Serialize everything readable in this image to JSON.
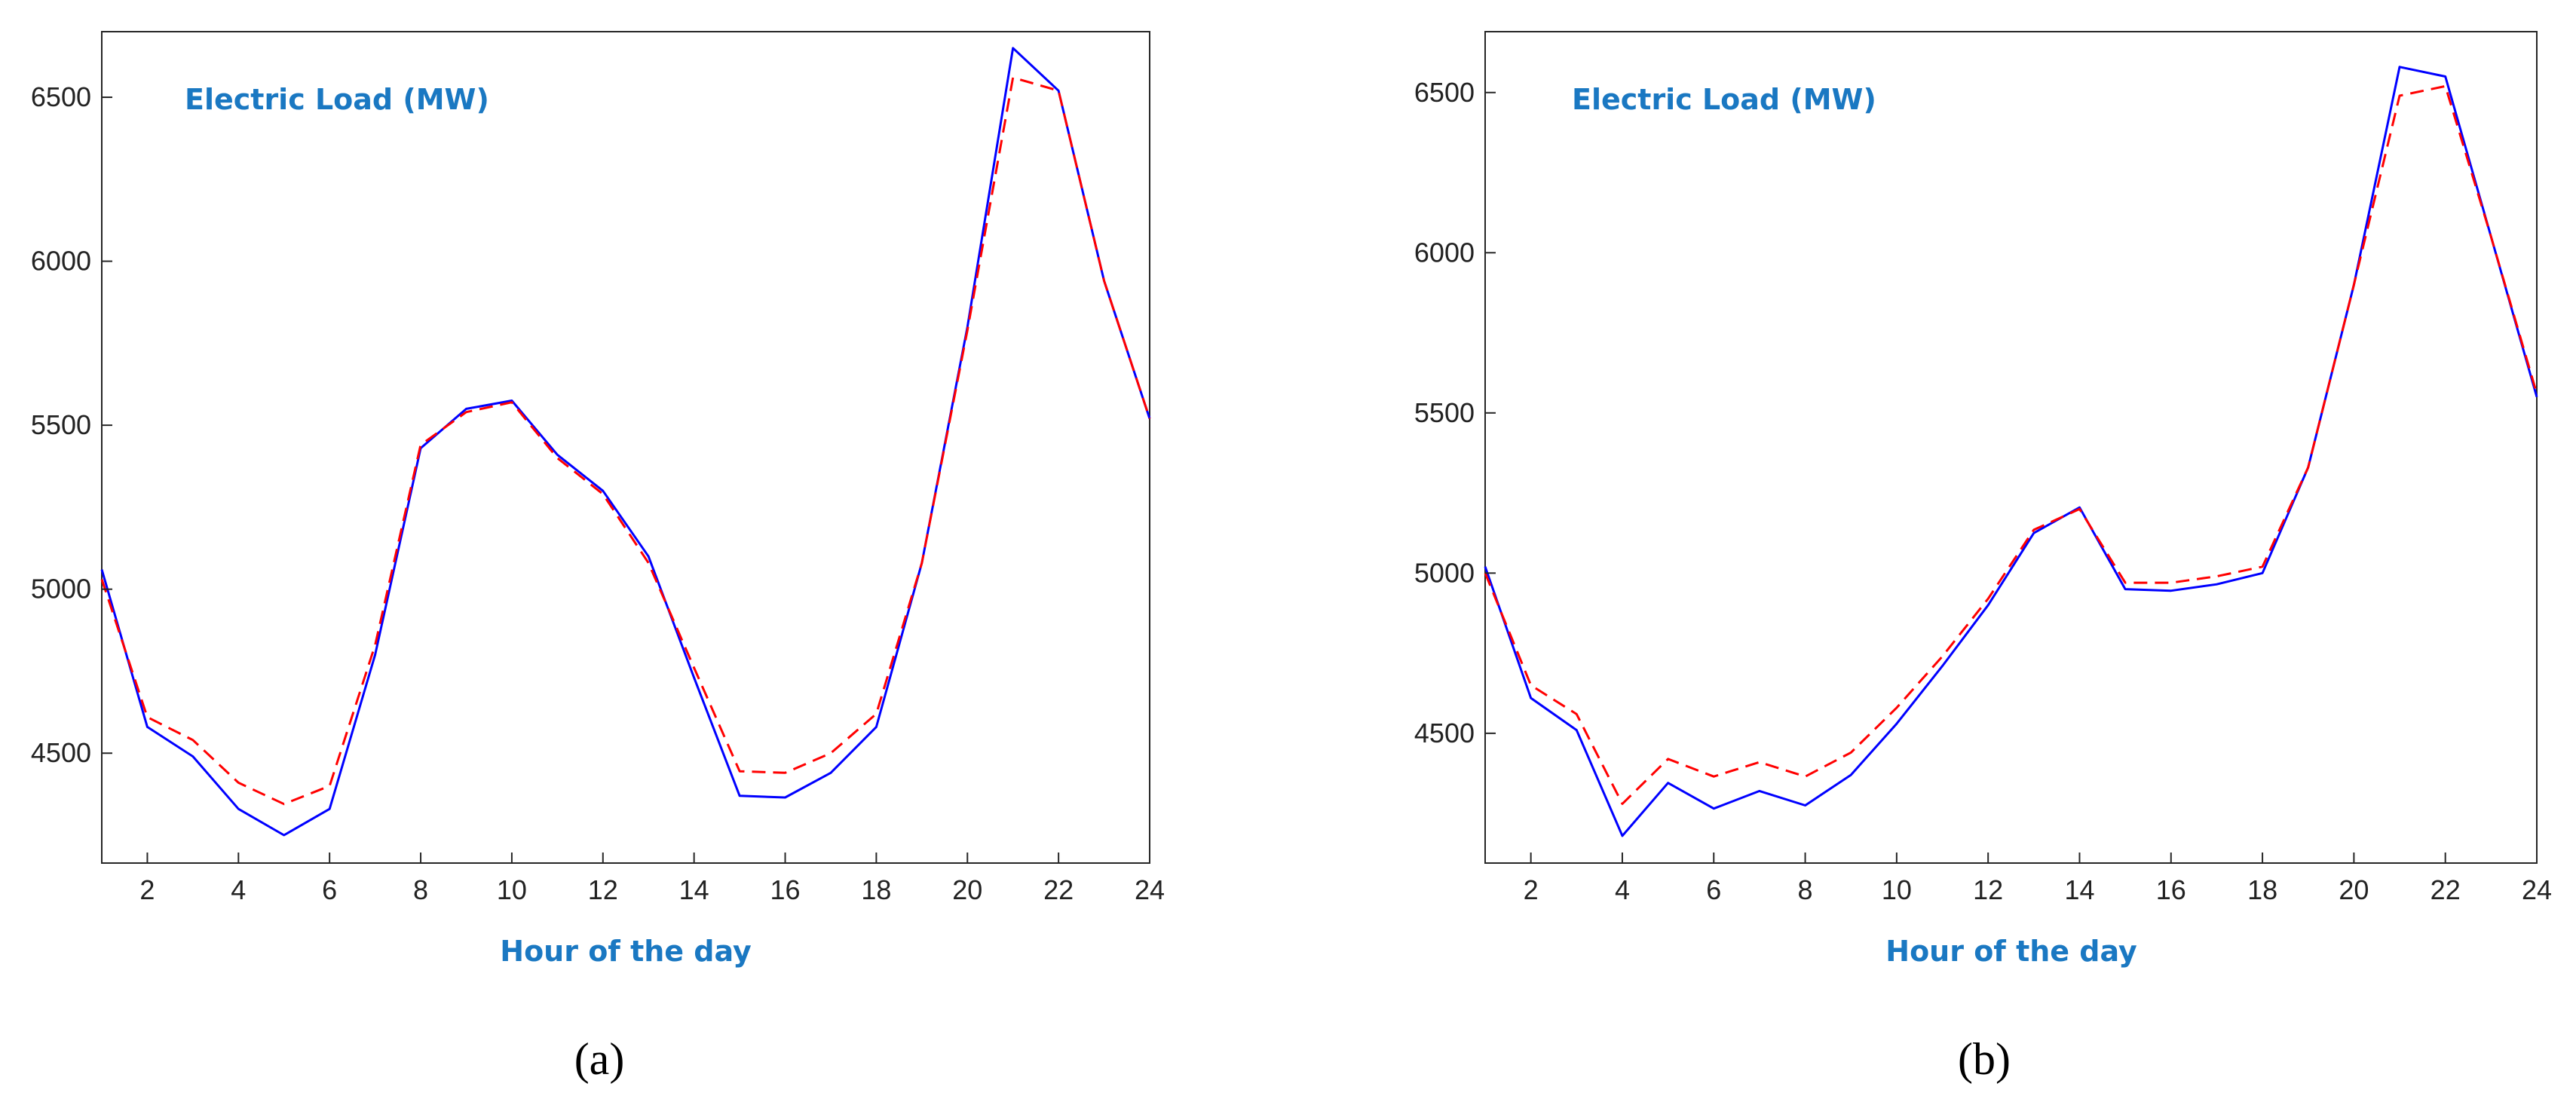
{
  "colors": {
    "actual": "#0000ff",
    "forecast": "#ff0000",
    "label_text": "#1a78c2",
    "axis": "#262626"
  },
  "chart_data": [
    {
      "type": "line",
      "title": "Electric Load (MW)",
      "xlabel": "Hour of the day",
      "ylabel": "",
      "caption": "(a)",
      "xlim": [
        1,
        24
      ],
      "ylim": [
        4165,
        6700
      ],
      "xticks": [
        2,
        4,
        6,
        8,
        10,
        12,
        14,
        16,
        18,
        20,
        22,
        24
      ],
      "yticks": [
        4500,
        5000,
        5500,
        6000,
        6500
      ],
      "grid": false,
      "x": [
        1,
        2,
        3,
        4,
        5,
        6,
        7,
        8,
        9,
        10,
        11,
        12,
        13,
        14,
        15,
        16,
        17,
        18,
        19,
        20,
        21,
        22,
        23,
        24
      ],
      "series": [
        {
          "style": "solid",
          "color": "#0000ff",
          "values": [
            5060,
            4580,
            4490,
            4330,
            4250,
            4330,
            4800,
            5430,
            5550,
            5575,
            5410,
            5300,
            5100,
            4730,
            4370,
            4365,
            4440,
            4580,
            5080,
            5800,
            6650,
            6520,
            5940,
            5520
          ]
        },
        {
          "style": "dashed",
          "color": "#ff0000",
          "values": [
            5030,
            4610,
            4540,
            4410,
            4345,
            4400,
            4830,
            5440,
            5540,
            5570,
            5400,
            5290,
            5080,
            4760,
            4445,
            4440,
            4500,
            4620,
            5080,
            5790,
            6560,
            6520,
            5940,
            5520
          ]
        }
      ]
    },
    {
      "type": "line",
      "title": "Electric Load (MW)",
      "xlabel": "Hour of the day",
      "ylabel": "",
      "caption": "(b)",
      "xlim": [
        1,
        24
      ],
      "ylim": [
        4095,
        6690
      ],
      "xticks": [
        2,
        4,
        6,
        8,
        10,
        12,
        14,
        16,
        18,
        20,
        22,
        24
      ],
      "yticks": [
        4500,
        5000,
        5500,
        6000,
        6500
      ],
      "grid": false,
      "x": [
        1,
        2,
        3,
        4,
        5,
        6,
        7,
        8,
        9,
        10,
        11,
        12,
        13,
        14,
        15,
        16,
        17,
        18,
        19,
        20,
        21,
        22,
        23,
        24
      ],
      "series": [
        {
          "style": "solid",
          "color": "#0000ff",
          "values": [
            5020,
            4610,
            4510,
            4180,
            4345,
            4265,
            4320,
            4275,
            4370,
            4530,
            4710,
            4900,
            5125,
            5205,
            4950,
            4945,
            4965,
            5000,
            5330,
            5900,
            6580,
            6550,
            6050,
            5550
          ]
        },
        {
          "style": "dashed",
          "color": "#ff0000",
          "values": [
            5000,
            4650,
            4560,
            4280,
            4420,
            4365,
            4410,
            4365,
            4440,
            4580,
            4740,
            4920,
            5135,
            5200,
            4970,
            4970,
            4990,
            5020,
            5330,
            5900,
            6490,
            6520,
            6050,
            5560
          ]
        }
      ]
    }
  ]
}
